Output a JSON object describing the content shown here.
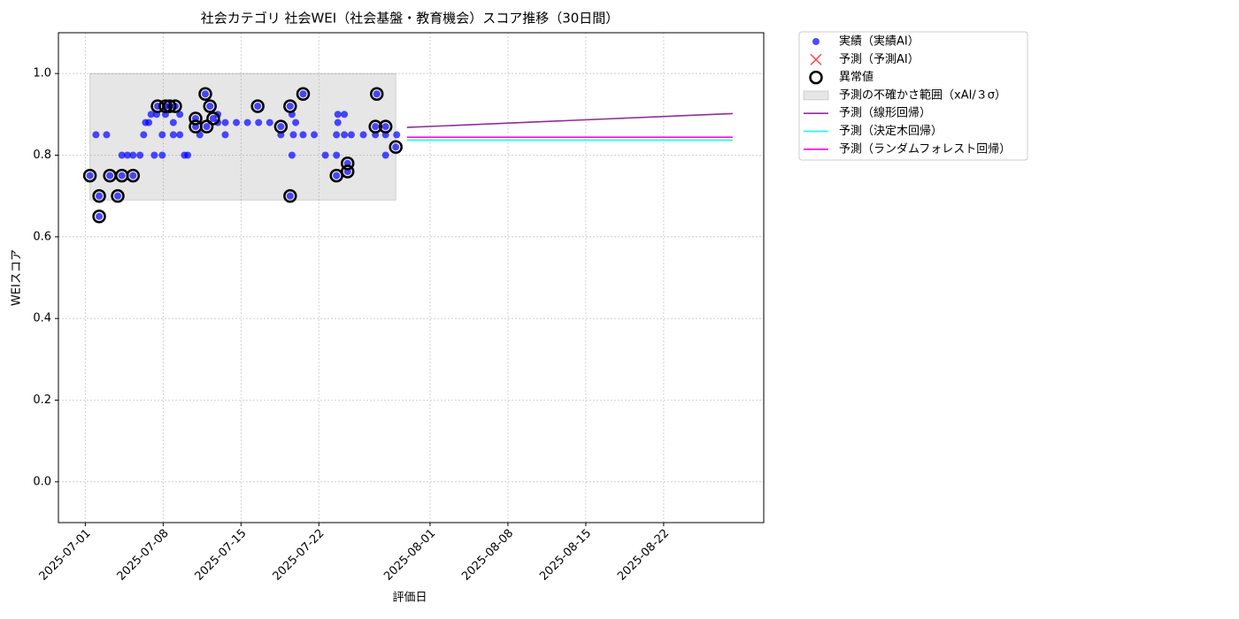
{
  "chart_data": {
    "type": "scatter",
    "title": "社会カテゴリ 社会WEI（社会基盤・教育機会）スコア推移（30日間）",
    "x_label": "評価日",
    "y_label": "WEIスコア",
    "xlim": [
      "2025-06-28T14:00",
      "2025-08-31T00:00"
    ],
    "xticks": [
      "2025-07-01",
      "2025-07-08",
      "2025-07-15",
      "2025-07-22",
      "2025-08-01",
      "2025-08-08",
      "2025-08-15",
      "2025-08-22"
    ],
    "ylim": [
      -0.1,
      1.1
    ],
    "yticks": [
      {
        "value": 0,
        "label": "0.0"
      },
      0.2,
      0.4,
      0.6,
      0.8,
      {
        "value": 1,
        "label": "1.0"
      }
    ],
    "grid": true,
    "legend": "outside-upper-right",
    "series": [
      {
        "name": "実績（実績AI）",
        "color": "#0000ff",
        "marker": "o",
        "x": [
          "2025-07-01T10:00",
          "2025-07-01T23:00",
          "2025-07-02T06:00",
          "2025-07-02T06:00",
          "2025-07-02T22:00",
          "2025-07-03T05:00",
          "2025-07-03T22:00",
          "2025-07-04T07:00",
          "2025-07-04T07:00",
          "2025-07-04T19:00",
          "2025-07-05T07:00",
          "2025-07-05T07:00",
          "2025-07-05T22:00",
          "2025-07-06T06:00",
          "2025-07-06T10:00",
          "2025-07-06T17:00",
          "2025-07-06T22:00",
          "2025-07-07T05:00",
          "2025-07-07T10:00",
          "2025-07-07T12:00",
          "2025-07-07T22:00",
          "2025-07-07T22:00",
          "2025-07-08T05:00",
          "2025-07-08T05:00",
          "2025-07-08T14:00",
          "2025-07-08T22:00",
          "2025-07-08T22:00",
          "2025-07-09T02:00",
          "2025-07-09T12:00",
          "2025-07-09T12:00",
          "2025-07-09T22:00",
          "2025-07-10T05:00",
          "2025-07-10T22:00",
          "2025-07-10T22:00",
          "2025-07-11T07:00",
          "2025-07-11T19:00",
          "2025-07-11T22:00",
          "2025-07-12T05:00",
          "2025-07-12T12:00",
          "2025-07-12T22:00",
          "2025-07-12T22:00",
          "2025-07-13T14:00",
          "2025-07-13T14:00",
          "2025-07-14T14:00",
          "2025-07-15T14:00",
          "2025-07-16T12:00",
          "2025-07-16T14:00",
          "2025-07-17T14:00",
          "2025-07-18T14:00",
          "2025-07-18T14:00",
          "2025-07-19T10:00",
          "2025-07-19T10:00",
          "2025-07-19T14:00",
          "2025-07-19T14:00",
          "2025-07-19T17:00",
          "2025-07-19T22:00",
          "2025-07-20T14:00",
          "2025-07-20T14:00",
          "2025-07-21T14:00",
          "2025-07-22T14:00",
          "2025-07-23T14:00",
          "2025-07-23T14:00",
          "2025-07-23T14:00",
          "2025-07-23T17:00",
          "2025-07-23T17:00",
          "2025-07-24T07:00",
          "2025-07-24T07:00",
          "2025-07-24T14:00",
          "2025-07-24T14:00",
          "2025-07-24T22:00",
          "2025-07-26T00:00",
          "2025-07-27T02:00",
          "2025-07-27T02:00",
          "2025-07-27T05:00",
          "2025-07-28T00:00",
          "2025-07-28T00:00",
          "2025-07-28T00:00",
          "2025-07-28T22:00",
          "2025-07-29T00:00"
        ],
        "values": [
          0.75,
          0.85,
          0.7,
          0.65,
          0.85,
          0.75,
          0.7,
          0.75,
          0.8,
          0.8,
          0.8,
          0.75,
          0.8,
          0.85,
          0.88,
          0.88,
          0.9,
          0.8,
          0.9,
          0.92,
          0.8,
          0.85,
          0.9,
          0.92,
          0.92,
          0.88,
          0.85,
          0.92,
          0.9,
          0.85,
          0.8,
          0.8,
          0.89,
          0.87,
          0.85,
          0.95,
          0.87,
          0.92,
          0.89,
          0.9,
          0.88,
          0.88,
          0.85,
          0.88,
          0.88,
          0.92,
          0.88,
          0.88,
          0.87,
          0.85,
          0.92,
          0.7,
          0.9,
          0.8,
          0.85,
          0.88,
          0.95,
          0.85,
          0.85,
          0.8,
          0.75,
          0.8,
          0.85,
          0.88,
          0.9,
          0.9,
          0.85,
          0.78,
          0.76,
          0.85,
          0.85,
          0.87,
          0.85,
          0.95,
          0.8,
          0.87,
          0.85,
          0.82,
          0.85
        ]
      },
      {
        "name": "予測（予測AI）",
        "color": "#ff0000",
        "marker": "x",
        "x": [],
        "values": []
      },
      {
        "name": "異常値",
        "color": "#000000",
        "marker": "ring",
        "x": [
          "2025-07-01T10:00",
          "2025-07-02T06:00",
          "2025-07-02T06:00",
          "2025-07-03T05:00",
          "2025-07-03T22:00",
          "2025-07-04T07:00",
          "2025-07-05T07:00",
          "2025-07-07T12:00",
          "2025-07-08T05:00",
          "2025-07-08T14:00",
          "2025-07-09T02:00",
          "2025-07-10T22:00",
          "2025-07-10T22:00",
          "2025-07-11T19:00",
          "2025-07-11T22:00",
          "2025-07-12T05:00",
          "2025-07-12T12:00",
          "2025-07-16T12:00",
          "2025-07-18T14:00",
          "2025-07-19T10:00",
          "2025-07-19T10:00",
          "2025-07-20T14:00",
          "2025-07-23T14:00",
          "2025-07-24T14:00",
          "2025-07-24T14:00",
          "2025-07-27T02:00",
          "2025-07-27T05:00",
          "2025-07-28T00:00",
          "2025-07-28T22:00"
        ],
        "values": [
          0.75,
          0.7,
          0.65,
          0.75,
          0.7,
          0.75,
          0.75,
          0.92,
          0.92,
          0.92,
          0.92,
          0.89,
          0.87,
          0.95,
          0.87,
          0.92,
          0.89,
          0.92,
          0.87,
          0.92,
          0.7,
          0.95,
          0.75,
          0.78,
          0.76,
          0.87,
          0.95,
          0.87,
          0.82
        ]
      }
    ],
    "band": {
      "name": "予測の不確かさ範囲（xAI/３σ）",
      "color": "#808080",
      "x": [
        "2025-07-01T10:00",
        "2025-07-28T22:00"
      ],
      "lower": [
        0.69,
        0.69
      ],
      "upper": [
        1.0,
        1.0
      ]
    },
    "lines": [
      {
        "name": "予測（線形回帰）",
        "color": "#912d9b",
        "x": [
          "2025-07-29T22:00",
          "2025-08-28T05:00"
        ],
        "values": [
          0.868,
          0.902
        ]
      },
      {
        "name": "予測（決定木回帰）",
        "color": "#00ffff",
        "x": [
          "2025-07-29T22:00",
          "2025-08-28T05:00"
        ],
        "values": [
          0.837,
          0.837
        ]
      },
      {
        "name": "予測（ランダムフォレスト回帰）",
        "color": "#ff00ff",
        "x": [
          "2025-07-29T22:00",
          "2025-08-28T05:00"
        ],
        "values": [
          0.844,
          0.844
        ]
      }
    ]
  }
}
